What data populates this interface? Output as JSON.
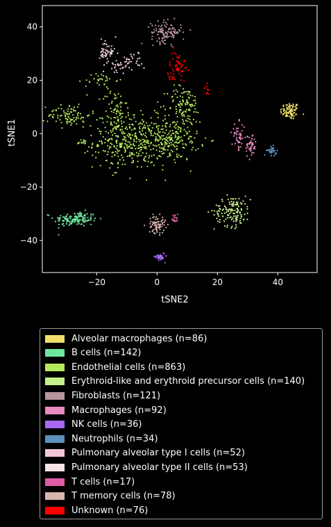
{
  "chart_data": {
    "type": "scatter",
    "title": "",
    "xlabel": "tSNE2",
    "ylabel": "tSNE1",
    "xlim": [
      -38,
      53
    ],
    "ylim": [
      -52,
      48
    ],
    "xticks": [
      -20,
      0,
      20,
      40
    ],
    "yticks": [
      -40,
      -20,
      0,
      20,
      40
    ],
    "tick_labels_x": [
      "−20",
      "0",
      "20",
      "40"
    ],
    "tick_labels_y": [
      "−40",
      "−20",
      "0",
      "20",
      "40"
    ],
    "grid": false,
    "legend_placement": "below",
    "series": [
      {
        "name": "Alveolar macrophages (n=86)",
        "color": "#f0e06a",
        "n": 86,
        "clusters": [
          {
            "x": 44,
            "y": 8.5,
            "sx": 1.6,
            "sy": 1.6,
            "n": 86
          }
        ]
      },
      {
        "name": "B cells (n=142)",
        "color": "#6ee6a0",
        "n": 142,
        "clusters": [
          {
            "x": -27,
            "y": -32,
            "sx": 3.6,
            "sy": 1.4,
            "n": 142
          }
        ]
      },
      {
        "name": "Endothelial cells (n=863)",
        "color": "#b4e85a",
        "n": 863,
        "clusters": [
          {
            "x": -9,
            "y": -3,
            "sx": 6,
            "sy": 5,
            "n": 360
          },
          {
            "x": 5,
            "y": -2,
            "sx": 4.5,
            "sy": 4,
            "n": 200
          },
          {
            "x": -14,
            "y": 8,
            "sx": 2,
            "sy": 5,
            "n": 70
          },
          {
            "x": -29,
            "y": 7,
            "sx": 3.5,
            "sy": 2.2,
            "n": 90
          },
          {
            "x": -19,
            "y": 20,
            "sx": 2.5,
            "sy": 1.4,
            "n": 30
          },
          {
            "x": 9,
            "y": 11,
            "sx": 2.8,
            "sy": 3.5,
            "n": 100
          },
          {
            "x": -25,
            "y": -3,
            "sx": 1,
            "sy": 0.6,
            "n": 13
          }
        ]
      },
      {
        "name": "Erythroid-like and erythroid precursor cells (n=140)",
        "color": "#c6f08c",
        "n": 140,
        "clusters": [
          {
            "x": 25,
            "y": -29,
            "sx": 3,
            "sy": 2.8,
            "n": 140
          }
        ]
      },
      {
        "name": "Fibroblasts (n=121)",
        "color": "#b8959e",
        "n": 121,
        "clusters": [
          {
            "x": 3,
            "y": 38,
            "sx": 2.5,
            "sy": 2,
            "n": 121
          }
        ]
      },
      {
        "name": "Macrophages (n=92)",
        "color": "#e98ac0",
        "n": 92,
        "clusters": [
          {
            "x": 27,
            "y": -1,
            "sx": 1.1,
            "sy": 2.5,
            "n": 45
          },
          {
            "x": 31,
            "y": -4.5,
            "sx": 0.9,
            "sy": 2.2,
            "n": 47
          }
        ]
      },
      {
        "name": "NK cells (n=36)",
        "color": "#a56af0",
        "n": 36,
        "clusters": [
          {
            "x": 1,
            "y": -46,
            "sx": 0.8,
            "sy": 0.8,
            "n": 36
          }
        ]
      },
      {
        "name": "Neutrophils (n=34)",
        "color": "#5e90bd",
        "n": 34,
        "clusters": [
          {
            "x": 38,
            "y": -6.5,
            "sx": 0.8,
            "sy": 0.8,
            "n": 34
          }
        ]
      },
      {
        "name": "Pulmonary alveolar type I cells (n=52)",
        "color": "#f5c6d8",
        "n": 52,
        "clusters": [
          {
            "x": -17,
            "y": 32,
            "sx": 1,
            "sy": 2.5,
            "n": 26
          },
          {
            "x": -12,
            "y": 25,
            "sx": 2,
            "sy": 1.5,
            "n": 26
          }
        ]
      },
      {
        "name": "Pulmonary alveolar type II cells (n=53)",
        "color": "#f6e4e4",
        "n": 53,
        "clusters": [
          {
            "x": -16,
            "y": 30,
            "sx": 1.5,
            "sy": 2.5,
            "n": 30
          },
          {
            "x": -8,
            "y": 27,
            "sx": 2,
            "sy": 2,
            "n": 23
          }
        ]
      },
      {
        "name": "T cells (n=17)",
        "color": "#e05aa8",
        "n": 17,
        "clusters": [
          {
            "x": 6,
            "y": -32,
            "sx": 0.5,
            "sy": 1,
            "n": 17
          }
        ]
      },
      {
        "name": "T memory cells (n=78)",
        "color": "#d8b4b0",
        "n": 78,
        "clusters": [
          {
            "x": 0,
            "y": -34,
            "sx": 1.4,
            "sy": 1.6,
            "n": 78
          }
        ]
      },
      {
        "name": "Unknown (n=76)",
        "color": "#ff0000",
        "n": 76,
        "clusters": [
          {
            "x": 7,
            "y": 26,
            "sx": 1.3,
            "sy": 2.5,
            "n": 50
          },
          {
            "x": 4.5,
            "y": 21.5,
            "sx": 0.8,
            "sy": 0.8,
            "n": 14
          },
          {
            "x": 16.5,
            "y": 16,
            "sx": 0.4,
            "sy": 1,
            "n": 12
          }
        ]
      }
    ]
  }
}
